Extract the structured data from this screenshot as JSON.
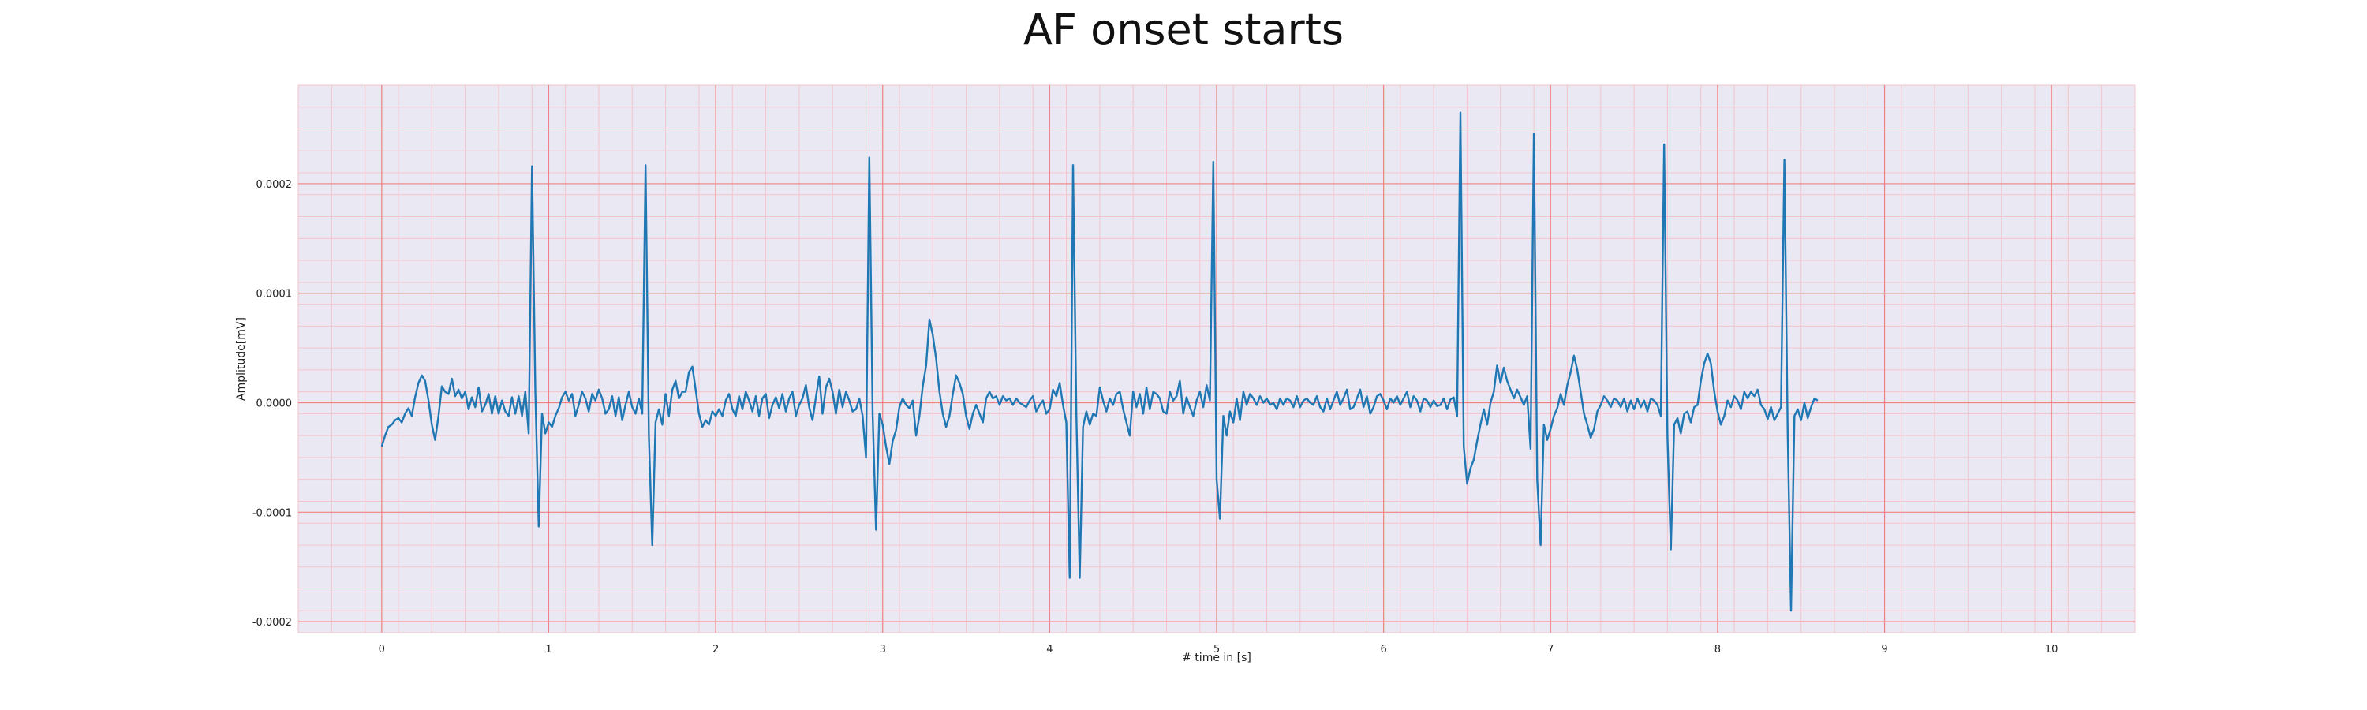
{
  "chart_data": {
    "type": "line",
    "title": "AF onset starts",
    "xlabel": "# time in [s]",
    "ylabel": "Amplitude[mV]",
    "xlim": [
      -0.5,
      10.5
    ],
    "ylim": [
      -0.00021,
      0.00029
    ],
    "x_ticks": [
      "0",
      "1",
      "2",
      "3",
      "4",
      "5",
      "6",
      "7",
      "8",
      "9",
      "10"
    ],
    "y_ticks": [
      "-0.0002",
      "-0.0001",
      "0.0000",
      "0.0001",
      "0.0002"
    ],
    "grid": true,
    "major_grid_color": "#f08080",
    "minor_grid_color": "#f4c4cc",
    "background_color": "#eae8f2",
    "line_color": "#1f77b4",
    "sampling_step_s": 0.02,
    "series": [
      {
        "values": [
          -4e-05,
          -3e-05,
          -2.2e-05,
          -2e-05,
          -1.6e-05,
          -1.4e-05,
          -1.8e-05,
          -1e-05,
          -5e-06,
          -1.2e-05,
          5e-06,
          1.8e-05,
          2.5e-05,
          2e-05,
          2e-06,
          -2e-05,
          -3.4e-05,
          -1.2e-05,
          1.5e-05,
          1e-05,
          8e-06,
          2.2e-05,
          6e-06,
          1.2e-05,
          4e-06,
          1e-05,
          -6e-06,
          5e-06,
          -4e-06,
          1.4e-05,
          -8e-06,
          -2e-06,
          8e-06,
          -1e-05,
          6e-06,
          -1e-05,
          2e-06,
          -8e-06,
          -1.2e-05,
          5e-06,
          -1e-05,
          6e-06,
          -1.2e-05,
          1e-05,
          -2.8e-05,
          0.000216,
          1e-05,
          -0.000113,
          -1e-05,
          -2.8e-05,
          -1.8e-05,
          -2.2e-05,
          -1.2e-05,
          -5e-06,
          5e-06,
          1e-05,
          2e-06,
          8e-06,
          -1.2e-05,
          -2e-06,
          1e-05,
          4e-06,
          -8e-06,
          8e-06,
          2e-06,
          1.2e-05,
          4e-06,
          -1e-05,
          -6e-06,
          6e-06,
          -1.2e-05,
          5e-06,
          -1.6e-05,
          -2e-06,
          1e-05,
          -4e-06,
          -1e-05,
          4e-06,
          -1e-05,
          0.000217,
          -3e-05,
          -0.00013,
          -1.8e-05,
          -6e-06,
          -2e-05,
          8e-06,
          -1.2e-05,
          1.2e-05,
          2e-05,
          4e-06,
          1e-05,
          1e-05,
          2.8e-05,
          3.3e-05,
          1.2e-05,
          -1e-05,
          -2.2e-05,
          -1.6e-05,
          -2e-05,
          -8e-06,
          -1.2e-05,
          -6e-06,
          -1.2e-05,
          2e-06,
          8e-06,
          -6e-06,
          -1.2e-05,
          6e-06,
          -6e-06,
          1e-05,
          2e-06,
          -8e-06,
          6e-06,
          -1.2e-05,
          4e-06,
          8e-06,
          -1.4e-05,
          -2e-06,
          5e-06,
          -5e-06,
          8e-06,
          -8e-06,
          4e-06,
          1e-05,
          -1.2e-05,
          -2e-06,
          4e-06,
          1.6e-05,
          -4e-06,
          -1.6e-05,
          5e-06,
          2.4e-05,
          -1e-05,
          1.4e-05,
          2.2e-05,
          1e-05,
          -1e-05,
          1.2e-05,
          -4e-06,
          1e-05,
          2e-06,
          -8e-06,
          -6e-06,
          4e-06,
          -1.2e-05,
          -5e-05,
          0.000224,
          -1e-05,
          -0.000116,
          -1e-05,
          -2e-05,
          -4e-05,
          -5.6e-05,
          -3.5e-05,
          -2.5e-05,
          -4e-06,
          4e-06,
          -2e-06,
          -5e-06,
          2e-06,
          -3e-05,
          -1.2e-05,
          1.5e-05,
          3.4e-05,
          7.6e-05,
          6.2e-05,
          4e-05,
          1e-05,
          -1e-05,
          -2.2e-05,
          -1.2e-05,
          8e-06,
          2.5e-05,
          1.8e-05,
          8e-06,
          -1.2e-05,
          -2.4e-05,
          -1e-05,
          -2e-06,
          -1e-05,
          -1.8e-05,
          4e-06,
          1e-05,
          4e-06,
          6e-06,
          -2e-06,
          6e-06,
          2e-06,
          4e-06,
          -2e-06,
          4e-06,
          0.0,
          -2e-06,
          -4e-06,
          2e-06,
          6e-06,
          -8e-06,
          -2e-06,
          2e-06,
          -1e-05,
          -6e-06,
          1.2e-05,
          6e-06,
          1.8e-05,
          -2e-06,
          -1.8e-05,
          -0.00016,
          0.000217,
          -1e-05,
          -0.00016,
          -2.2e-05,
          -8e-06,
          -2e-05,
          -1e-05,
          -1.2e-05,
          1.4e-05,
          2e-06,
          -8e-06,
          4e-06,
          -2e-06,
          8e-06,
          1e-05,
          -6e-06,
          -1.8e-05,
          -3e-05,
          1e-05,
          -4e-06,
          8e-06,
          -1e-05,
          1.4e-05,
          -6e-06,
          1e-05,
          8e-06,
          4e-06,
          -8e-06,
          -1e-05,
          1e-05,
          2e-06,
          6e-06,
          2e-05,
          -1e-05,
          5e-06,
          -4e-06,
          -1.2e-05,
          2e-06,
          1e-05,
          -4e-06,
          1.6e-05,
          2e-06,
          0.00022,
          -7e-05,
          -0.000106,
          -1.2e-05,
          -3e-05,
          -8e-06,
          -1.8e-05,
          4e-06,
          -1.6e-05,
          1e-05,
          -2e-06,
          8e-06,
          4e-06,
          -2e-06,
          6e-06,
          0.0,
          4e-06,
          -2e-06,
          0.0,
          -6e-06,
          4e-06,
          -2e-06,
          4e-06,
          2e-06,
          -4e-06,
          6e-06,
          -4e-06,
          2e-06,
          4e-06,
          0.0,
          -2e-06,
          6e-06,
          -4e-06,
          -8e-06,
          4e-06,
          -6e-06,
          2e-06,
          1e-05,
          -2e-06,
          4e-06,
          1.2e-05,
          -6e-06,
          -4e-06,
          4e-06,
          1.2e-05,
          -4e-06,
          6e-06,
          -1e-05,
          -4e-06,
          6e-06,
          8e-06,
          2e-06,
          -6e-06,
          4e-06,
          0.0,
          6e-06,
          -2e-06,
          4e-06,
          1e-05,
          -4e-06,
          6e-06,
          2e-06,
          -8e-06,
          4e-06,
          2e-06,
          -4e-06,
          2e-06,
          -3e-06,
          -2e-06,
          4e-06,
          -6e-06,
          3e-06,
          5e-06,
          -1.2e-05,
          0.000265,
          -4e-05,
          -7.4e-05,
          -6e-05,
          -5.2e-05,
          -3.5e-05,
          -2e-05,
          -6e-06,
          -2e-05,
          0.0,
          1e-05,
          3.4e-05,
          1.8e-05,
          3.2e-05,
          2e-05,
          1.2e-05,
          4e-06,
          1.2e-05,
          5e-06,
          -2e-06,
          6e-06,
          -4.2e-05,
          0.000246,
          -7e-05,
          -0.00013,
          -2e-05,
          -3.4e-05,
          -2.4e-05,
          -1.2e-05,
          -5e-06,
          8e-06,
          -2e-06,
          1.6e-05,
          2.8e-05,
          4.3e-05,
          3e-05,
          1e-05,
          -1e-05,
          -2e-05,
          -3.2e-05,
          -2.4e-05,
          -8e-06,
          -2e-06,
          6e-06,
          2e-06,
          -4e-06,
          4e-06,
          2e-06,
          -4e-06,
          4e-06,
          -8e-06,
          2e-06,
          -6e-06,
          4e-06,
          -4e-06,
          2e-06,
          -8e-06,
          4e-06,
          2e-06,
          -2e-06,
          -1.2e-05,
          0.000236,
          -3.2e-05,
          -0.000134,
          -2e-05,
          -1.4e-05,
          -2.8e-05,
          -1e-05,
          -8e-06,
          -1.8e-05,
          -4e-06,
          -2e-06,
          2e-05,
          3.6e-05,
          4.5e-05,
          3.6e-05,
          1e-05,
          -8e-06,
          -2e-05,
          -1.2e-05,
          2e-06,
          -4e-06,
          6e-06,
          2e-06,
          -6e-06,
          1e-05,
          4e-06,
          1e-05,
          6e-06,
          1.2e-05,
          -2e-06,
          -6e-06,
          -1.5e-05,
          -4e-06,
          -1.6e-05,
          -1e-05,
          -4e-06,
          0.000222,
          -2.8e-05,
          -0.00019,
          -1.2e-05,
          -6e-06,
          -1.6e-05,
          0.0,
          -1.4e-05,
          -4e-06,
          4e-06,
          2e-06
        ]
      }
    ]
  }
}
